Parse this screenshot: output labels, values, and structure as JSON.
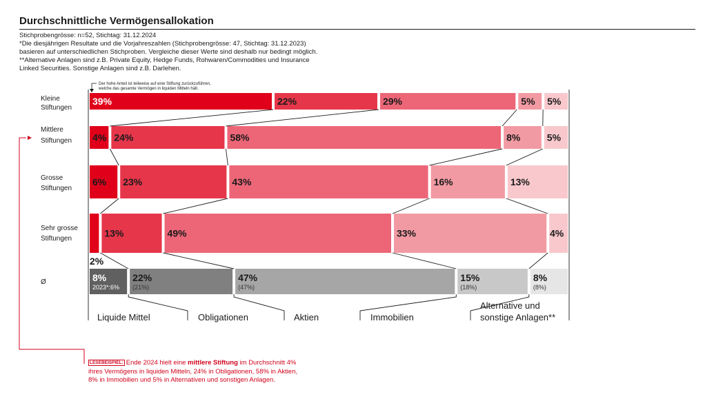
{
  "header": {
    "title": "Durchschnittliche Vermögensallokation",
    "notes": [
      "Stichprobengrösse: n=52, Stichtag: 31.12.2024",
      "*Die diesjährigen Resultate und die Vorjahreszahlen (Stichprobengrösse: 47, Stichtag: 31.12.2023)",
      "basieren auf unterschiedlichen Stichproben. Vergleiche dieser Werte sind deshalb nur bedingt möglich.",
      "**Alternative Anlagen sind z.B. Private Equity, Hedge Funds, Rohwaren/Commodities und Insurance",
      "Linked Securities. Sonstige Anlagen sind z.B. Darlehen."
    ]
  },
  "annotation": {
    "line1": "Der hohe Anteil ist teilweise auf eine Stiftung zurückzuführen,",
    "line2": "welche das gesamte Vermögen in liquiden Mitteln hält."
  },
  "lesebeispiel": {
    "tag": "LESEBEISPIEL:",
    "part1": "Ende 2024 hielt eine ",
    "bold": "mittlere Stiftung",
    "part2": " im Durchschnitt 4%",
    "line2": "ihres Vermögens in liquiden Mitteln, 24% in Obligationen, 58% in Aktien,",
    "line3": "8% in Immobilien und 5% in Alternativen und sonstigen Anlagen."
  },
  "colors": {
    "segments": [
      "#e0001a",
      "#e6364a",
      "#ec6677",
      "#f29aa3",
      "#f8c8cd"
    ],
    "avg_segments": [
      "#606060",
      "#808080",
      "#a6a6a6",
      "#c8c8c8",
      "#e6e6e6"
    ],
    "accent": "#d0021b"
  },
  "chart_data": {
    "type": "bar",
    "orientation": "horizontal",
    "stacked": "100%",
    "categories": [
      "Liquide Mittel",
      "Obligationen",
      "Aktien",
      "Immobilien",
      "Alternative und sonstige Anlagen**"
    ],
    "rows": [
      {
        "label": [
          "Kleine",
          "Stiftungen"
        ],
        "values": [
          39,
          22,
          29,
          5,
          5
        ],
        "labels": [
          "39%",
          "22%",
          "29%",
          "5%",
          "5%"
        ]
      },
      {
        "label": [
          "Mittlere",
          "Stiftungen"
        ],
        "values": [
          4,
          24,
          58,
          8,
          5
        ],
        "labels": [
          "4%",
          "24%",
          "58%",
          "8%",
          "5%"
        ]
      },
      {
        "label": [
          "Grosse",
          "Stiftungen"
        ],
        "values": [
          6,
          23,
          43,
          16,
          13
        ],
        "labels": [
          "6%",
          "23%",
          "43%",
          "16%",
          "13%"
        ]
      },
      {
        "label": [
          "Sehr grosse",
          "Stiftungen"
        ],
        "values": [
          2,
          13,
          49,
          33,
          4
        ],
        "labels": [
          "2%",
          "13%",
          "49%",
          "33%",
          "4%"
        ]
      },
      {
        "label": [
          "Ø"
        ],
        "average": true,
        "values": [
          8,
          22,
          47,
          15,
          8
        ],
        "labels": [
          "8%",
          "22%",
          "47%",
          "15%",
          "8%"
        ],
        "previous_year": [
          "2023*:6%",
          "(21%)",
          "(47%)",
          "(18%)",
          "(8%)"
        ]
      }
    ]
  }
}
